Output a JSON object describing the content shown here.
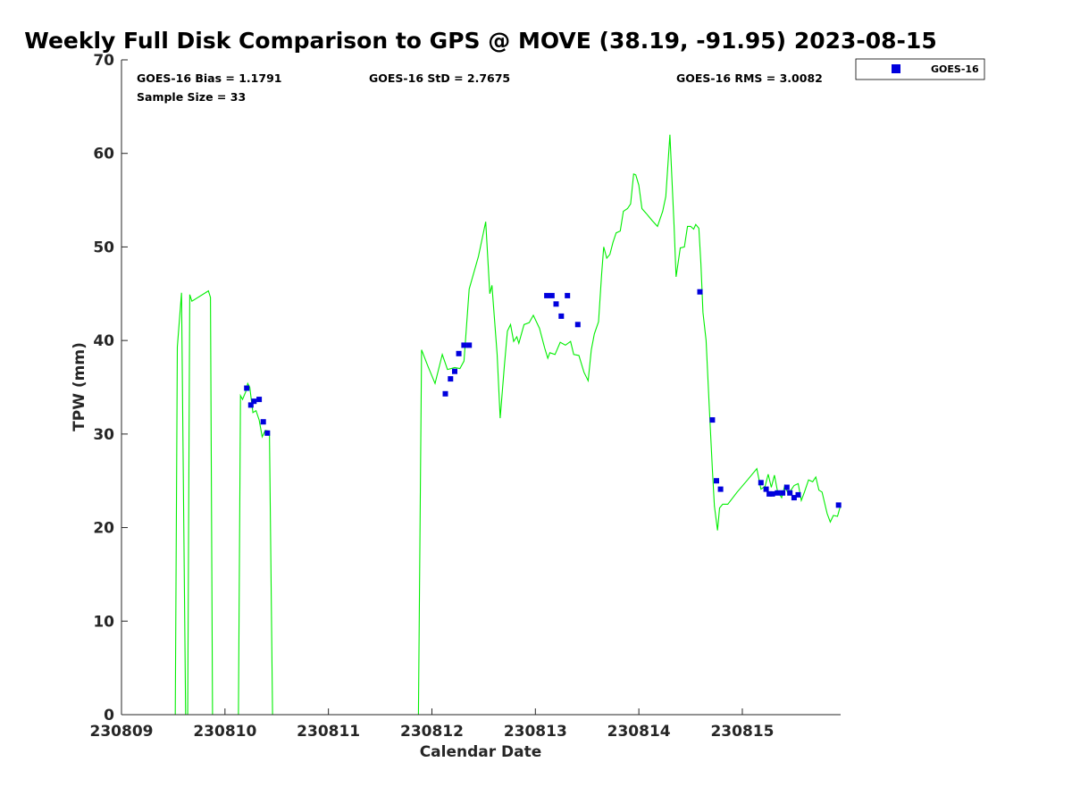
{
  "chart_data": {
    "type": "scatter",
    "title": "Weekly Full Disk Comparison to GPS @ MOVE (38.19, -91.95) 2023-08-15",
    "xlabel": "Calendar Date",
    "ylabel": "TPW (mm)",
    "x_ticks": [
      {
        "value": 0,
        "label": "230809"
      },
      {
        "value": 1,
        "label": "230810"
      },
      {
        "value": 2,
        "label": "230811"
      },
      {
        "value": 3,
        "label": "230812"
      },
      {
        "value": 4,
        "label": "230813"
      },
      {
        "value": 5,
        "label": "230814"
      },
      {
        "value": 6,
        "label": "230815"
      }
    ],
    "xlim": [
      0,
      6.95
    ],
    "ylim": [
      0,
      70
    ],
    "y_ticks": [
      0,
      10,
      20,
      30,
      40,
      50,
      60,
      70
    ],
    "grid": false,
    "legend_position": "top-right outside",
    "stats": {
      "bias": "GOES-16 Bias = 1.1791",
      "std": "GOES-16 StD = 2.7675",
      "rms": "GOES-16 RMS = 3.0082",
      "sample": "Sample Size = 33"
    },
    "series": [
      {
        "name": "GOES-16",
        "kind": "markers",
        "color": "#0000dd",
        "points": [
          [
            1.21,
            34.9
          ],
          [
            1.25,
            33.1
          ],
          [
            1.28,
            33.5
          ],
          [
            1.33,
            33.7
          ],
          [
            1.37,
            31.3
          ],
          [
            1.41,
            30.1
          ],
          [
            3.13,
            34.3
          ],
          [
            3.18,
            35.9
          ],
          [
            3.22,
            36.7
          ],
          [
            3.26,
            38.6
          ],
          [
            3.31,
            39.5
          ],
          [
            3.36,
            39.5
          ],
          [
            4.11,
            44.8
          ],
          [
            4.16,
            44.8
          ],
          [
            4.2,
            43.9
          ],
          [
            4.25,
            42.6
          ],
          [
            4.31,
            44.8
          ],
          [
            4.41,
            41.7
          ],
          [
            5.59,
            45.2
          ],
          [
            5.71,
            31.5
          ],
          [
            5.75,
            25.0
          ],
          [
            5.79,
            24.1
          ],
          [
            6.18,
            24.8
          ],
          [
            6.23,
            24.1
          ],
          [
            6.26,
            23.6
          ],
          [
            6.29,
            23.6
          ],
          [
            6.34,
            23.7
          ],
          [
            6.39,
            23.7
          ],
          [
            6.43,
            24.3
          ],
          [
            6.46,
            23.7
          ],
          [
            6.5,
            23.2
          ],
          [
            6.54,
            23.5
          ],
          [
            6.93,
            22.4
          ]
        ]
      },
      {
        "kind": "line",
        "color": "#00ee00",
        "segments": [
          [
            [
              0.52,
              0
            ],
            [
              0.54,
              39.3
            ],
            [
              0.58,
              45.1
            ],
            [
              0.62,
              0
            ]
          ],
          [
            [
              0.64,
              0
            ],
            [
              0.66,
              44.9
            ],
            [
              0.68,
              44.2
            ],
            [
              0.84,
              45.3
            ],
            [
              0.86,
              44.6
            ],
            [
              0.88,
              0
            ]
          ],
          [
            [
              1.13,
              0
            ],
            [
              1.15,
              34.1
            ],
            [
              1.17,
              33.7
            ],
            [
              1.2,
              34.5
            ],
            [
              1.22,
              35.4
            ],
            [
              1.24,
              35.0
            ],
            [
              1.27,
              32.3
            ],
            [
              1.3,
              32.5
            ],
            [
              1.33,
              31.5
            ],
            [
              1.36,
              29.7
            ],
            [
              1.39,
              30.4
            ],
            [
              1.43,
              30.3
            ],
            [
              1.46,
              0
            ]
          ],
          [
            [
              2.87,
              0
            ],
            [
              2.9,
              39.0
            ],
            [
              2.96,
              37.3
            ],
            [
              3.03,
              35.4
            ],
            [
              3.1,
              38.5
            ],
            [
              3.15,
              36.9
            ],
            [
              3.22,
              37.1
            ],
            [
              3.27,
              37.0
            ],
            [
              3.31,
              37.8
            ],
            [
              3.36,
              45.5
            ],
            [
              3.45,
              49.0
            ],
            [
              3.52,
              52.7
            ],
            [
              3.56,
              45.0
            ],
            [
              3.58,
              45.9
            ],
            [
              3.63,
              38.5
            ],
            [
              3.66,
              31.7
            ],
            [
              3.7,
              37.3
            ],
            [
              3.73,
              41.0
            ],
            [
              3.76,
              41.7
            ],
            [
              3.79,
              39.9
            ],
            [
              3.82,
              40.4
            ],
            [
              3.84,
              39.7
            ],
            [
              3.89,
              41.7
            ],
            [
              3.94,
              41.9
            ],
            [
              3.98,
              42.7
            ],
            [
              4.04,
              41.3
            ],
            [
              4.09,
              39.2
            ],
            [
              4.12,
              38.1
            ],
            [
              4.14,
              38.7
            ],
            [
              4.19,
              38.5
            ],
            [
              4.24,
              39.8
            ],
            [
              4.29,
              39.5
            ],
            [
              4.34,
              39.9
            ],
            [
              4.37,
              38.5
            ],
            [
              4.42,
              38.4
            ],
            [
              4.47,
              36.6
            ],
            [
              4.51,
              35.7
            ],
            [
              4.54,
              39.0
            ],
            [
              4.57,
              40.7
            ],
            [
              4.61,
              42.0
            ],
            [
              4.64,
              47.0
            ],
            [
              4.66,
              50.0
            ],
            [
              4.69,
              48.8
            ],
            [
              4.72,
              49.2
            ],
            [
              4.75,
              50.5
            ],
            [
              4.78,
              51.5
            ],
            [
              4.82,
              51.7
            ],
            [
              4.85,
              53.8
            ],
            [
              4.89,
              54.1
            ],
            [
              4.92,
              54.6
            ],
            [
              4.95,
              57.8
            ],
            [
              4.97,
              57.7
            ],
            [
              5.0,
              56.6
            ],
            [
              5.03,
              54.1
            ],
            [
              5.07,
              53.6
            ],
            [
              5.1,
              53.2
            ],
            [
              5.13,
              52.8
            ],
            [
              5.18,
              52.2
            ],
            [
              5.23,
              53.8
            ],
            [
              5.26,
              55.4
            ],
            [
              5.3,
              62.0
            ],
            [
              5.34,
              52.4
            ],
            [
              5.36,
              46.8
            ],
            [
              5.4,
              49.9
            ],
            [
              5.44,
              50.0
            ],
            [
              5.47,
              52.2
            ],
            [
              5.5,
              52.2
            ],
            [
              5.53,
              51.9
            ],
            [
              5.55,
              52.4
            ],
            [
              5.58,
              52.0
            ],
            [
              5.6,
              48.2
            ],
            [
              5.62,
              43.0
            ],
            [
              5.65,
              40.0
            ],
            [
              5.68,
              33.0
            ],
            [
              5.71,
              26.3
            ],
            [
              5.73,
              22.3
            ],
            [
              5.76,
              19.7
            ],
            [
              5.78,
              22.1
            ],
            [
              5.81,
              22.5
            ],
            [
              5.86,
              22.5
            ],
            [
              5.95,
              23.8
            ],
            [
              6.05,
              25.1
            ],
            [
              6.14,
              26.3
            ],
            [
              6.18,
              24.1
            ],
            [
              6.22,
              24.4
            ],
            [
              6.25,
              25.7
            ],
            [
              6.28,
              24.3
            ],
            [
              6.31,
              25.6
            ],
            [
              6.34,
              23.9
            ],
            [
              6.38,
              23.2
            ],
            [
              6.41,
              24.5
            ],
            [
              6.44,
              23.7
            ],
            [
              6.47,
              24.0
            ],
            [
              6.5,
              24.5
            ],
            [
              6.54,
              24.7
            ],
            [
              6.57,
              22.9
            ],
            [
              6.6,
              23.8
            ],
            [
              6.64,
              25.1
            ],
            [
              6.68,
              24.9
            ],
            [
              6.71,
              25.4
            ],
            [
              6.74,
              24.0
            ],
            [
              6.77,
              23.8
            ],
            [
              6.82,
              21.5
            ],
            [
              6.85,
              20.6
            ],
            [
              6.88,
              21.3
            ],
            [
              6.92,
              21.2
            ],
            [
              6.95,
              22.4
            ]
          ]
        ]
      }
    ]
  }
}
